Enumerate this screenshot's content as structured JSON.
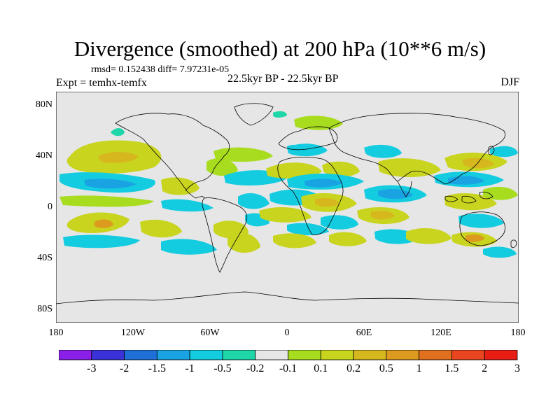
{
  "title": "Divergence (smoothed) at 200 hPa (10**6 m/s)",
  "stats_line": "rmsd= 0.152438 diff= 7.97231e-05",
  "experiment_line": "Expt = temhx-temfx",
  "period_line": "22.5kyr BP - 22.5kyr BP",
  "season": "DJF",
  "lat_labels": [
    "80N",
    "40N",
    "0",
    "40S",
    "80S"
  ],
  "lon_labels": [
    "180",
    "120W",
    "60W",
    "0",
    "60E",
    "120E",
    "180"
  ],
  "colorbar": {
    "colors": [
      "#8a20e8",
      "#3a32d8",
      "#1f6fd8",
      "#1aa3e3",
      "#14cce0",
      "#1ed6a8",
      "#e6e6e6",
      "#a8dc1e",
      "#c8d41e",
      "#d6b81e",
      "#dc9a1e",
      "#e0701e",
      "#e8461e",
      "#e81e14"
    ],
    "labels": [
      "-3",
      "-2",
      "-1.5",
      "-1",
      "-0.5",
      "-0.2",
      "-0.1",
      "0.1",
      "0.2",
      "0.5",
      "1",
      "1.5",
      "2",
      "3"
    ]
  },
  "map_background": "#e6e6e6",
  "coastline_color": "#000000"
}
